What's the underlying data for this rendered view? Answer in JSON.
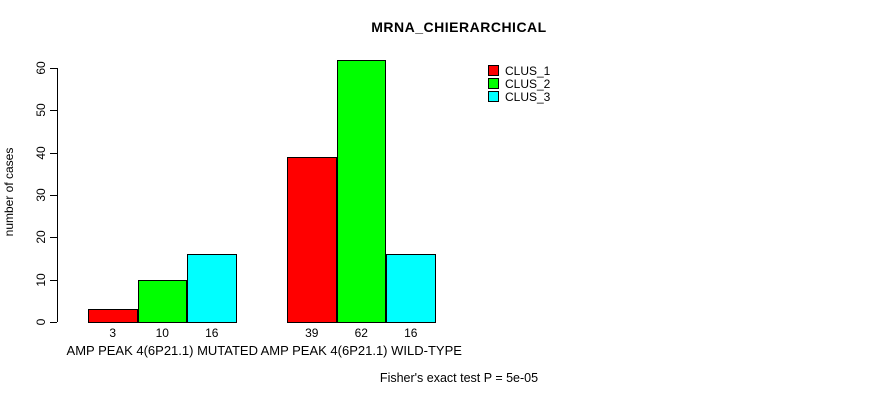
{
  "chart_data": {
    "type": "bar",
    "title": "MRNA_CHIERARCHICAL",
    "ylabel": "number of cases",
    "xlabel": "",
    "categories": [
      "AMP PEAK 4(6P21.1) MUTATED",
      "AMP PEAK 4(6P21.1) WILD-TYPE"
    ],
    "series": [
      {
        "name": "CLUS_1",
        "color": "#ff0000",
        "values": [
          3,
          39
        ]
      },
      {
        "name": "CLUS_2",
        "color": "#00ff00",
        "values": [
          10,
          62
        ]
      },
      {
        "name": "CLUS_3",
        "color": "#00ffff",
        "values": [
          16,
          16
        ]
      }
    ],
    "bar_value_labels": [
      [
        "3",
        "10",
        "16"
      ],
      [
        "39",
        "62",
        "16"
      ]
    ],
    "ylim": [
      0,
      65
    ],
    "yticks": [
      0,
      10,
      20,
      30,
      40,
      50,
      60
    ],
    "grid": false,
    "legend_position": "top-right",
    "bar_border_color": "#000000",
    "background_color": "#ffffff",
    "footnote": "Fisher's exact test P = 5e-05"
  }
}
